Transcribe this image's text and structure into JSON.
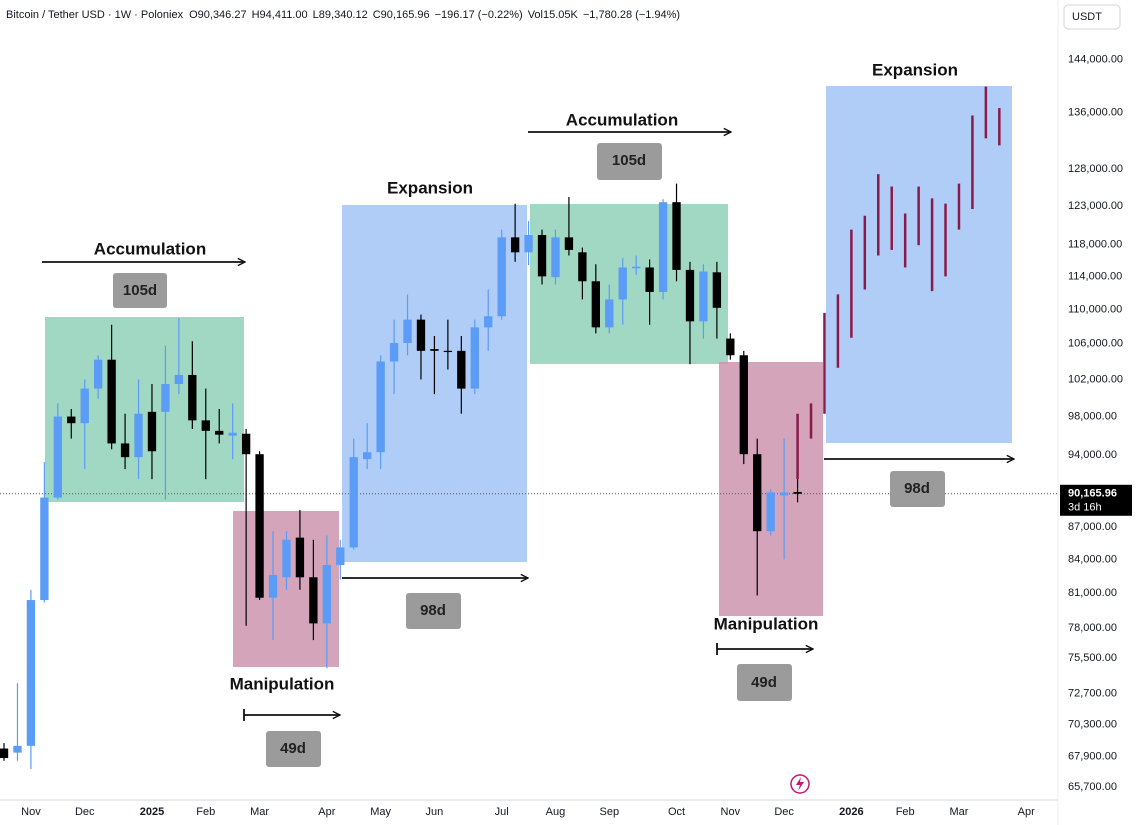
{
  "chart_data": {
    "type": "candlestick",
    "symbol": "Bitcoin / Tether USD · 1W · Poloniex",
    "ohlc_header": [
      "O90,346.27",
      "H94,411.00",
      "L89,340.12",
      "C90,165.96",
      "−196.17 (−0.22%)",
      "Vol15.05K",
      "−1,780.28 (−1.94%)"
    ],
    "currency": "USDT",
    "log_scale": true,
    "grid": false,
    "ylim": [
      64800,
      153600
    ],
    "yticks": [
      {
        "value": 144000,
        "label": "144,000.00"
      },
      {
        "value": 136000,
        "label": "136,000.00"
      },
      {
        "value": 128000,
        "label": "128,000.00"
      },
      {
        "value": 123000,
        "label": "123,000.00"
      },
      {
        "value": 118000,
        "label": "118,000.00"
      },
      {
        "value": 114000,
        "label": "114,000.00"
      },
      {
        "value": 110000,
        "label": "110,000.00"
      },
      {
        "value": 106000,
        "label": "106,000.00"
      },
      {
        "value": 102000,
        "label": "102,000.00"
      },
      {
        "value": 98000,
        "label": "98,000.00"
      },
      {
        "value": 94000,
        "label": "94,000.00"
      },
      {
        "value": 87000,
        "label": "87,000.00"
      },
      {
        "value": 84000,
        "label": "84,000.00"
      },
      {
        "value": 81000,
        "label": "81,000.00"
      },
      {
        "value": 78000,
        "label": "78,000.00"
      },
      {
        "value": 75500,
        "label": "75,500.00"
      },
      {
        "value": 72700,
        "label": "72,700.00"
      },
      {
        "value": 70300,
        "label": "70,300.00"
      },
      {
        "value": 67900,
        "label": "67,900.00"
      },
      {
        "value": 65700,
        "label": "65,700.00"
      }
    ],
    "last_price": {
      "value": 90165.96,
      "label": "90,165.96"
    },
    "countdown": "3d 16h",
    "categories": [
      null,
      null,
      "Nov",
      null,
      null,
      null,
      "Dec",
      null,
      null,
      null,
      null,
      "2025",
      null,
      null,
      null,
      "Feb",
      null,
      null,
      null,
      "Mar",
      null,
      null,
      null,
      null,
      "Apr",
      null,
      null,
      null,
      "May",
      null,
      null,
      null,
      "Jun",
      null,
      null,
      null,
      null,
      "Jul",
      null,
      null,
      null,
      "Aug",
      null,
      null,
      null,
      "Sep",
      null,
      null,
      null,
      null,
      "Oct",
      null,
      null,
      null,
      "Nov",
      null,
      null,
      null,
      "Dec",
      null,
      null,
      null,
      null,
      "2026",
      null,
      null,
      null,
      "Feb",
      null,
      null,
      null,
      "Mar",
      null,
      null,
      null,
      null,
      "Apr",
      null,
      null
    ],
    "candles": {
      "up_color": "#5b9cf6",
      "down_color": "#000000",
      "open": [
        68500,
        68200,
        68700,
        80400,
        89800,
        98000,
        97300,
        101000,
        104200,
        95200,
        93800,
        98500,
        98500,
        101500,
        102500,
        97600,
        96500,
        96000,
        96200,
        94100,
        80600,
        82400,
        86000,
        82400,
        78400,
        83500,
        85100,
        93600,
        94300,
        104000,
        106100,
        108800,
        105400,
        105200,
        105200,
        101000,
        107900,
        109200,
        118900,
        117000,
        119200,
        113900,
        118900,
        117000,
        113400,
        107900,
        111200,
        115000,
        115100,
        112100,
        123500,
        114800,
        108600,
        114500,
        106600,
        104700,
        94100,
        86600,
        90000,
        90346.27,
        null,
        null,
        null,
        null,
        null,
        null,
        null,
        null,
        null,
        null,
        null,
        null,
        null,
        null,
        null,
        null,
        null,
        null,
        null
      ],
      "high": [
        68900,
        73500,
        81300,
        93300,
        99400,
        98800,
        102000,
        104700,
        108200,
        98300,
        102000,
        101500,
        105800,
        109000,
        106300,
        101000,
        98800,
        99400,
        96700,
        94400,
        86600,
        86600,
        88600,
        85800,
        86200,
        85800,
        95700,
        97300,
        104700,
        108800,
        111800,
        109400,
        106900,
        108800,
        106900,
        108800,
        112400,
        119900,
        123300,
        121000,
        119900,
        119900,
        124200,
        117600,
        115500,
        113000,
        116300,
        116600,
        116100,
        123900,
        126000,
        115800,
        115500,
        115800,
        107200,
        105200,
        95700,
        90600,
        95700,
        94411,
        null,
        null,
        null,
        null,
        null,
        null,
        null,
        null,
        null,
        null,
        null,
        null,
        null,
        null,
        null,
        null,
        null,
        null,
        null
      ],
      "low": [
        67600,
        67600,
        67000,
        80200,
        89600,
        95700,
        92600,
        99900,
        94600,
        92600,
        91600,
        91600,
        89600,
        100400,
        96700,
        91600,
        95200,
        93600,
        78200,
        80400,
        77000,
        81300,
        81300,
        77000,
        74700,
        82200,
        84900,
        92600,
        92600,
        100400,
        104700,
        102000,
        100400,
        103100,
        98300,
        100400,
        105200,
        108800,
        115800,
        115400,
        113000,
        113000,
        116600,
        111200,
        107200,
        107200,
        108200,
        114200,
        108200,
        111200,
        113400,
        103700,
        106600,
        106600,
        104200,
        93100,
        80800,
        86200,
        84000,
        89340.12,
        null,
        null,
        null,
        null,
        null,
        null,
        null,
        null,
        null,
        null,
        null,
        null,
        null,
        null,
        null,
        null,
        null,
        null,
        null
      ],
      "close": [
        67800,
        68700,
        80400,
        89800,
        98000,
        97300,
        101000,
        104200,
        95200,
        93800,
        98300,
        94400,
        101500,
        102500,
        97600,
        96500,
        96100,
        96300,
        94100,
        80600,
        82600,
        85800,
        82400,
        78400,
        83500,
        85100,
        93800,
        94300,
        104000,
        106100,
        108800,
        105200,
        105200,
        105100,
        101000,
        107900,
        109200,
        118900,
        117000,
        119200,
        114000,
        118900,
        117300,
        113400,
        107900,
        111200,
        115100,
        115200,
        112100,
        123500,
        114800,
        108600,
        114600,
        110200,
        104700,
        94100,
        86600,
        90300,
        90300,
        90165.96,
        null,
        null,
        null,
        null,
        null,
        null,
        null,
        null,
        null,
        null,
        null,
        null,
        null,
        null,
        null,
        null,
        null,
        null,
        null
      ]
    },
    "projection": {
      "color": "#8b1a4a",
      "high": [
        null,
        null,
        null,
        null,
        null,
        null,
        null,
        null,
        null,
        null,
        null,
        null,
        null,
        null,
        null,
        null,
        null,
        null,
        null,
        null,
        null,
        null,
        null,
        null,
        null,
        null,
        null,
        null,
        null,
        null,
        null,
        null,
        null,
        null,
        null,
        null,
        null,
        null,
        null,
        null,
        null,
        null,
        null,
        null,
        null,
        null,
        null,
        null,
        null,
        null,
        null,
        null,
        null,
        null,
        null,
        null,
        null,
        null,
        null,
        98300,
        99400,
        109600,
        111800,
        119900,
        121700,
        127300,
        125600,
        122000,
        125600,
        124000,
        123300,
        126000,
        135600,
        139900,
        136700,
        null,
        null,
        null,
        null
      ],
      "low": [
        null,
        null,
        null,
        null,
        null,
        null,
        null,
        null,
        null,
        null,
        null,
        null,
        null,
        null,
        null,
        null,
        null,
        null,
        null,
        null,
        null,
        null,
        null,
        null,
        null,
        null,
        null,
        null,
        null,
        null,
        null,
        null,
        null,
        null,
        null,
        null,
        null,
        null,
        null,
        null,
        null,
        null,
        null,
        null,
        null,
        null,
        null,
        null,
        null,
        null,
        null,
        null,
        null,
        null,
        null,
        null,
        null,
        null,
        null,
        91600,
        95700,
        98300,
        103300,
        106700,
        112400,
        116600,
        117300,
        115100,
        117900,
        112200,
        114000,
        119900,
        122600,
        132300,
        131300,
        null,
        null,
        null,
        null
      ]
    },
    "annotations": [
      "Accumulation",
      "105d",
      "Manipulation",
      "49d",
      "Expansion",
      "98d",
      "Accumulation",
      "105d",
      "Manipulation",
      "49d",
      "Expansion",
      "98d"
    ]
  }
}
